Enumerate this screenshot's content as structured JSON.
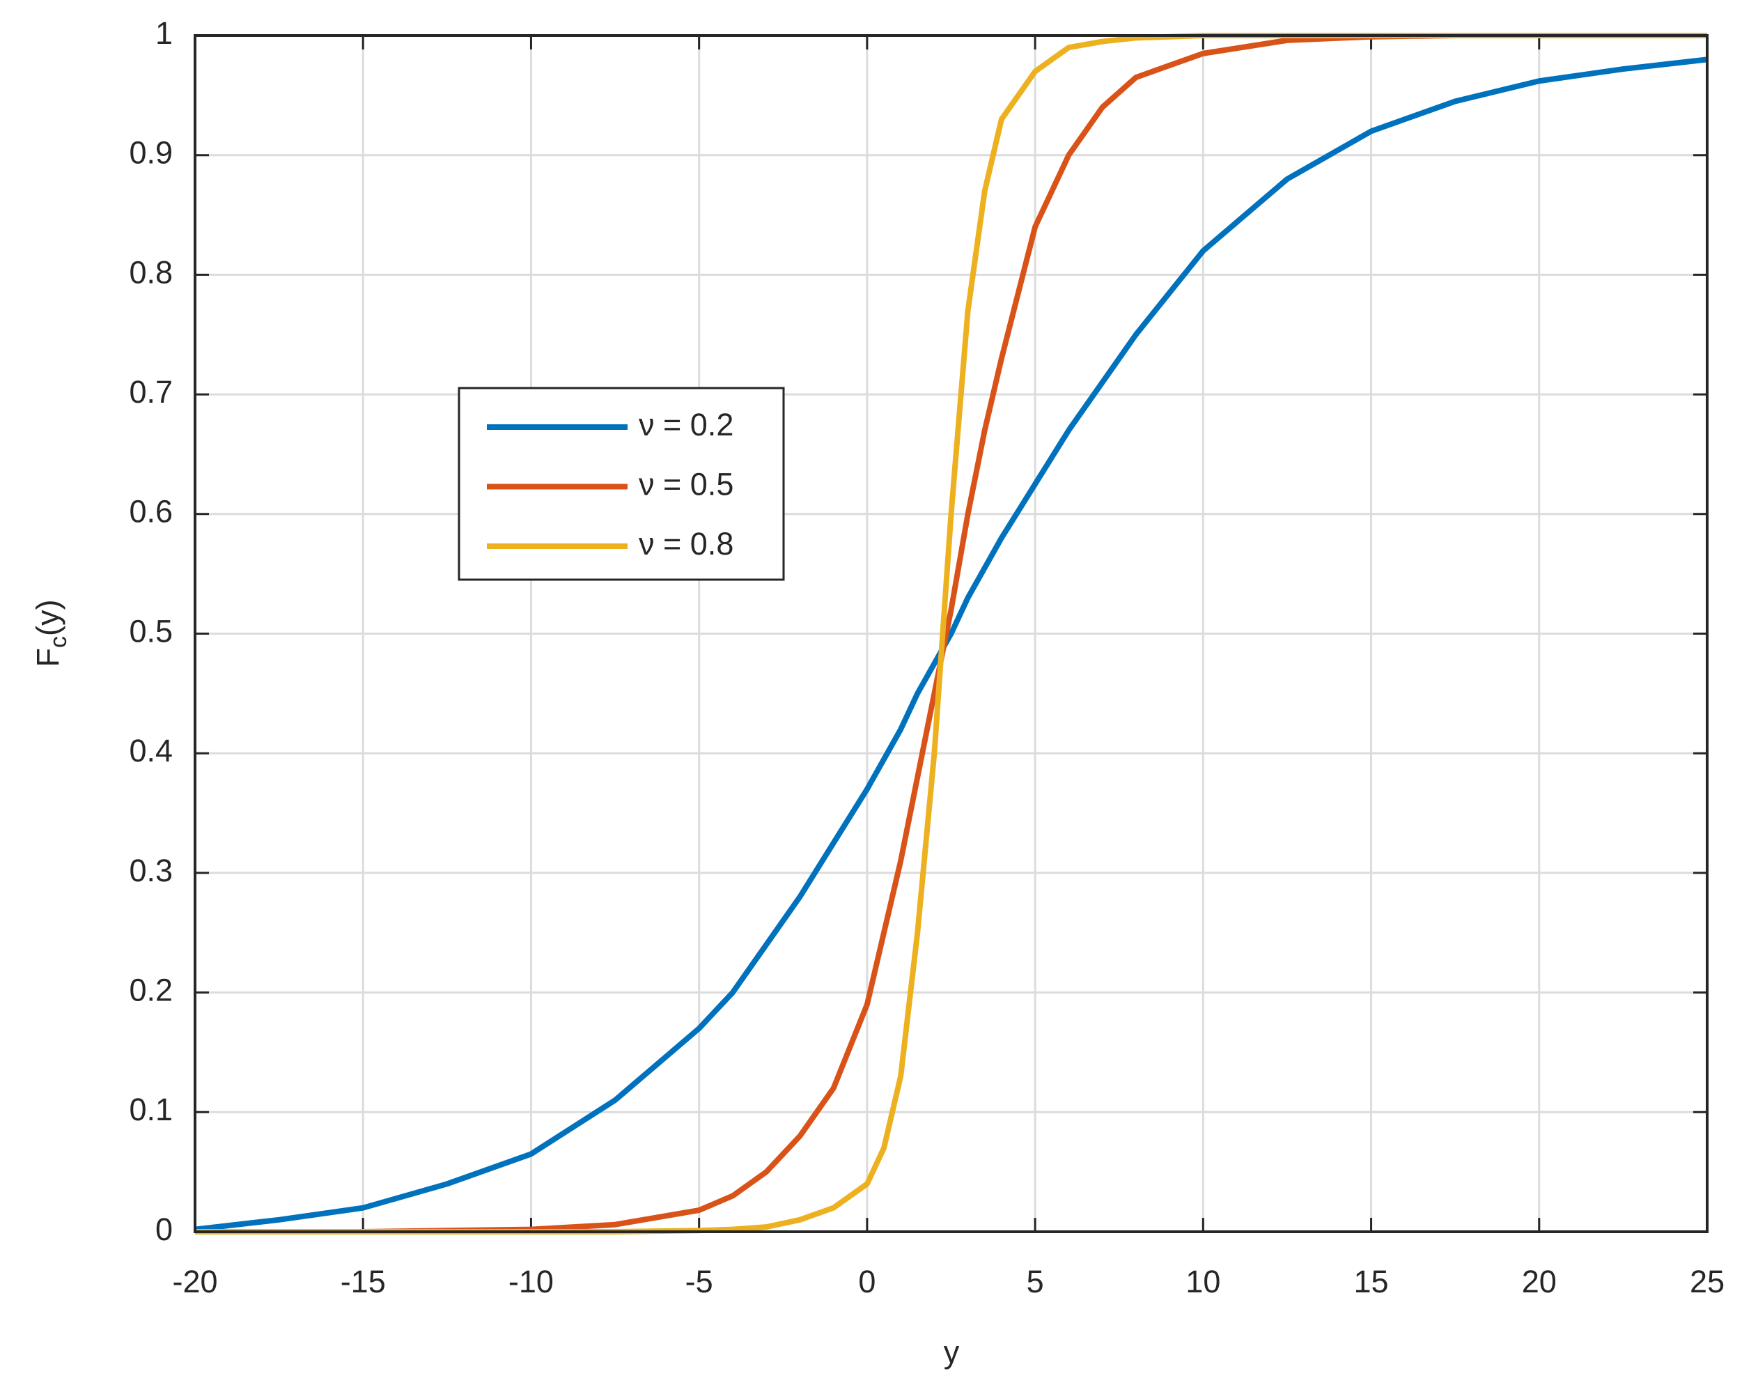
{
  "chart_data": {
    "type": "line",
    "x_label": "y",
    "y_label_parts": [
      "F",
      "c",
      "(y)"
    ],
    "x": [
      -20,
      -17.5,
      -15,
      -12.5,
      -10,
      -7.5,
      -5,
      -4,
      -3,
      -2,
      -1,
      0,
      0.5,
      1,
      1.5,
      2,
      2.5,
      3,
      3.5,
      4,
      5,
      6,
      7,
      8,
      10,
      12.5,
      15,
      17.5,
      20,
      22.5,
      25
    ],
    "series": [
      {
        "name": "ν = 0.2",
        "color": "#0072bd",
        "values": [
          0.002,
          0.01,
          0.02,
          0.04,
          0.065,
          0.11,
          0.17,
          0.2,
          0.24,
          0.28,
          0.325,
          0.37,
          0.395,
          0.42,
          0.45,
          0.475,
          0.5,
          0.53,
          0.555,
          0.58,
          0.625,
          0.67,
          0.71,
          0.75,
          0.82,
          0.88,
          0.92,
          0.945,
          0.962,
          0.972,
          0.98
        ]
      },
      {
        "name": "ν = 0.5",
        "color": "#d95319",
        "values": [
          0,
          0,
          0,
          0.001,
          0.002,
          0.006,
          0.018,
          0.03,
          0.05,
          0.08,
          0.12,
          0.19,
          0.25,
          0.31,
          0.38,
          0.45,
          0.52,
          0.6,
          0.67,
          0.73,
          0.84,
          0.9,
          0.94,
          0.965,
          0.985,
          0.996,
          0.999,
          1,
          1,
          1,
          1
        ]
      },
      {
        "name": "ν = 0.8",
        "color": "#edb120",
        "values": [
          0,
          0,
          0,
          0,
          0,
          0,
          0.001,
          0.002,
          0.004,
          0.01,
          0.02,
          0.04,
          0.07,
          0.13,
          0.25,
          0.4,
          0.6,
          0.77,
          0.87,
          0.93,
          0.97,
          0.99,
          0.995,
          0.998,
          1,
          1,
          1,
          1,
          1,
          1,
          1
        ]
      }
    ],
    "xlim": [
      -20,
      25
    ],
    "xticks": [
      -20,
      -15,
      -10,
      -5,
      0,
      5,
      10,
      15,
      20,
      25
    ],
    "ylim": [
      0,
      1
    ],
    "yticks": [
      0,
      0.1,
      0.2,
      0.3,
      0.4,
      0.5,
      0.6,
      0.7,
      0.8,
      0.9,
      1
    ],
    "grid": true
  }
}
